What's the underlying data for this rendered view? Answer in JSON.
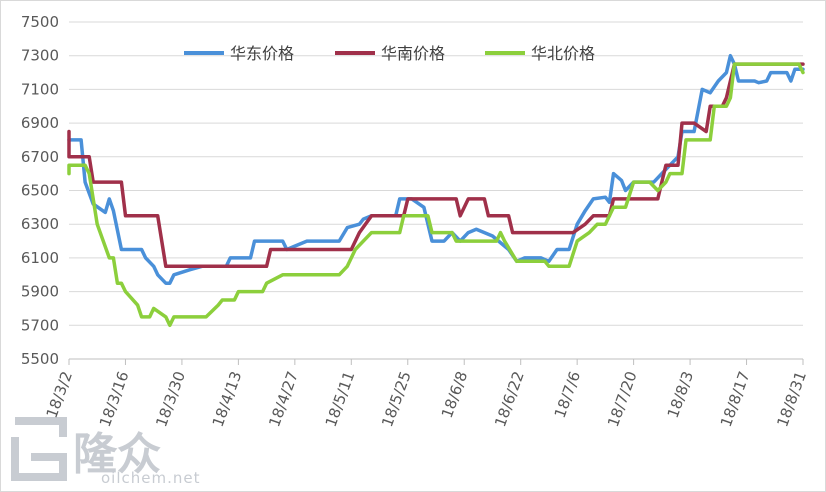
{
  "chart_data": {
    "type": "line",
    "title": "",
    "xlabel": "",
    "ylabel": "",
    "ylim": [
      5500,
      7500
    ],
    "yticks": [
      5500,
      5700,
      5900,
      6100,
      6300,
      6500,
      6700,
      6900,
      7100,
      7300,
      7500
    ],
    "x_range": [
      "18/3/2",
      "18/8/31"
    ],
    "xticks": [
      "18/3/2",
      "18/3/16",
      "18/3/30",
      "18/4/13",
      "18/4/27",
      "18/5/11",
      "18/5/25",
      "18/6/8",
      "18/6/22",
      "18/7/6",
      "18/7/20",
      "18/8/3",
      "18/8/17",
      "18/8/31"
    ],
    "grid": "horizontal",
    "legend_position": "top",
    "series": [
      {
        "name": "华东价格",
        "color": "#4a90d9",
        "points": [
          [
            "18/3/2",
            6800
          ],
          [
            "18/3/5",
            6800
          ],
          [
            "18/3/6",
            6550
          ],
          [
            "18/3/8",
            6420
          ],
          [
            "18/3/11",
            6370
          ],
          [
            "18/3/12",
            6450
          ],
          [
            "18/3/13",
            6380
          ],
          [
            "18/3/15",
            6150
          ],
          [
            "18/3/20",
            6150
          ],
          [
            "18/3/21",
            6100
          ],
          [
            "18/3/23",
            6050
          ],
          [
            "18/3/24",
            6000
          ],
          [
            "18/3/26",
            5950
          ],
          [
            "18/3/27",
            5950
          ],
          [
            "18/3/28",
            6000
          ],
          [
            "18/4/1",
            6030
          ],
          [
            "18/4/4",
            6050
          ],
          [
            "18/4/10",
            6050
          ],
          [
            "18/4/11",
            6100
          ],
          [
            "18/4/16",
            6100
          ],
          [
            "18/4/17",
            6200
          ],
          [
            "18/4/24",
            6200
          ],
          [
            "18/4/25",
            6150
          ],
          [
            "18/4/27",
            6170
          ],
          [
            "18/4/30",
            6200
          ],
          [
            "18/5/8",
            6200
          ],
          [
            "18/5/10",
            6280
          ],
          [
            "18/5/13",
            6300
          ],
          [
            "18/5/14",
            6330
          ],
          [
            "18/5/16",
            6350
          ],
          [
            "18/5/22",
            6350
          ],
          [
            "18/5/23",
            6450
          ],
          [
            "18/5/26",
            6450
          ],
          [
            "18/5/29",
            6400
          ],
          [
            "18/5/31",
            6200
          ],
          [
            "18/6/3",
            6200
          ],
          [
            "18/6/5",
            6250
          ],
          [
            "18/6/7",
            6200
          ],
          [
            "18/6/9",
            6250
          ],
          [
            "18/6/11",
            6270
          ],
          [
            "18/6/13",
            6250
          ],
          [
            "18/6/15",
            6230
          ],
          [
            "18/6/19",
            6150
          ],
          [
            "18/6/21",
            6080
          ],
          [
            "18/6/23",
            6100
          ],
          [
            "18/6/27",
            6100
          ],
          [
            "18/6/29",
            6080
          ],
          [
            "18/7/1",
            6150
          ],
          [
            "18/7/4",
            6150
          ],
          [
            "18/7/6",
            6300
          ],
          [
            "18/7/8",
            6380
          ],
          [
            "18/7/10",
            6450
          ],
          [
            "18/7/13",
            6460
          ],
          [
            "18/7/14",
            6430
          ],
          [
            "18/7/15",
            6600
          ],
          [
            "18/7/17",
            6560
          ],
          [
            "18/7/18",
            6500
          ],
          [
            "18/7/20",
            6550
          ],
          [
            "18/7/25",
            6550
          ],
          [
            "18/7/27",
            6600
          ],
          [
            "18/7/29",
            6650
          ],
          [
            "18/7/31",
            6700
          ],
          [
            "18/8/1",
            6850
          ],
          [
            "18/8/4",
            6850
          ],
          [
            "18/8/6",
            7100
          ],
          [
            "18/8/8",
            7080
          ],
          [
            "18/8/10",
            7150
          ],
          [
            "18/8/12",
            7200
          ],
          [
            "18/8/13",
            7300
          ],
          [
            "18/8/14",
            7250
          ],
          [
            "18/8/15",
            7150
          ],
          [
            "18/8/19",
            7150
          ],
          [
            "18/8/20",
            7140
          ],
          [
            "18/8/22",
            7150
          ],
          [
            "18/8/23",
            7200
          ],
          [
            "18/8/27",
            7200
          ],
          [
            "18/8/28",
            7150
          ],
          [
            "18/8/29",
            7220
          ],
          [
            "18/8/31",
            7220
          ]
        ]
      },
      {
        "name": "华南价格",
        "color": "#a0304a",
        "points": [
          [
            "18/3/2",
            6850
          ],
          [
            "18/3/2",
            6700
          ],
          [
            "18/3/7",
            6700
          ],
          [
            "18/3/8",
            6550
          ],
          [
            "18/3/15",
            6550
          ],
          [
            "18/3/16",
            6350
          ],
          [
            "18/3/24",
            6350
          ],
          [
            "18/3/26",
            6050
          ],
          [
            "18/4/20",
            6050
          ],
          [
            "18/4/21",
            6150
          ],
          [
            "18/5/11",
            6150
          ],
          [
            "18/5/13",
            6250
          ],
          [
            "18/5/16",
            6350
          ],
          [
            "18/5/24",
            6350
          ],
          [
            "18/5/25",
            6450
          ],
          [
            "18/6/6",
            6450
          ],
          [
            "18/6/7",
            6350
          ],
          [
            "18/6/9",
            6450
          ],
          [
            "18/6/13",
            6450
          ],
          [
            "18/6/14",
            6350
          ],
          [
            "18/6/19",
            6350
          ],
          [
            "18/6/20",
            6250
          ],
          [
            "18/7/5",
            6250
          ],
          [
            "18/7/8",
            6300
          ],
          [
            "18/7/10",
            6350
          ],
          [
            "18/7/14",
            6350
          ],
          [
            "18/7/15",
            6450
          ],
          [
            "18/7/26",
            6450
          ],
          [
            "18/7/27",
            6550
          ],
          [
            "18/7/28",
            6650
          ],
          [
            "18/7/31",
            6650
          ],
          [
            "18/8/1",
            6900
          ],
          [
            "18/8/4",
            6900
          ],
          [
            "18/8/7",
            6850
          ],
          [
            "18/8/8",
            7000
          ],
          [
            "18/8/11",
            7000
          ],
          [
            "18/8/12",
            7050
          ],
          [
            "18/8/14",
            7250
          ],
          [
            "18/8/31",
            7250
          ]
        ]
      },
      {
        "name": "华北价格",
        "color": "#8ccf3c",
        "points": [
          [
            "18/3/2",
            6600
          ],
          [
            "18/3/2",
            6650
          ],
          [
            "18/3/6",
            6650
          ],
          [
            "18/3/7",
            6600
          ],
          [
            "18/3/9",
            6300
          ],
          [
            "18/3/12",
            6100
          ],
          [
            "18/3/13",
            6100
          ],
          [
            "18/3/14",
            5950
          ],
          [
            "18/3/15",
            5950
          ],
          [
            "18/3/16",
            5900
          ],
          [
            "18/3/19",
            5820
          ],
          [
            "18/3/20",
            5750
          ],
          [
            "18/3/22",
            5750
          ],
          [
            "18/3/23",
            5800
          ],
          [
            "18/3/26",
            5750
          ],
          [
            "18/3/27",
            5700
          ],
          [
            "18/3/28",
            5750
          ],
          [
            "18/4/5",
            5750
          ],
          [
            "18/4/8",
            5820
          ],
          [
            "18/4/9",
            5850
          ],
          [
            "18/4/12",
            5850
          ],
          [
            "18/4/13",
            5900
          ],
          [
            "18/4/19",
            5900
          ],
          [
            "18/4/20",
            5950
          ],
          [
            "18/4/24",
            6000
          ],
          [
            "18/5/8",
            6000
          ],
          [
            "18/5/10",
            6050
          ],
          [
            "18/5/12",
            6150
          ],
          [
            "18/5/16",
            6250
          ],
          [
            "18/5/23",
            6250
          ],
          [
            "18/5/24",
            6350
          ],
          [
            "18/5/30",
            6350
          ],
          [
            "18/5/31",
            6250
          ],
          [
            "18/6/5",
            6250
          ],
          [
            "18/6/6",
            6200
          ],
          [
            "18/6/16",
            6200
          ],
          [
            "18/6/17",
            6250
          ],
          [
            "18/6/18",
            6200
          ],
          [
            "18/6/21",
            6080
          ],
          [
            "18/6/23",
            6080
          ],
          [
            "18/6/28",
            6080
          ],
          [
            "18/6/29",
            6050
          ],
          [
            "18/7/4",
            6050
          ],
          [
            "18/7/6",
            6200
          ],
          [
            "18/7/9",
            6250
          ],
          [
            "18/7/11",
            6300
          ],
          [
            "18/7/13",
            6300
          ],
          [
            "18/7/15",
            6400
          ],
          [
            "18/7/18",
            6400
          ],
          [
            "18/7/20",
            6550
          ],
          [
            "18/7/24",
            6550
          ],
          [
            "18/7/26",
            6500
          ],
          [
            "18/7/28",
            6550
          ],
          [
            "18/7/29",
            6600
          ],
          [
            "18/8/1",
            6600
          ],
          [
            "18/8/2",
            6800
          ],
          [
            "18/8/8",
            6800
          ],
          [
            "18/8/9",
            7000
          ],
          [
            "18/8/12",
            7000
          ],
          [
            "18/8/13",
            7050
          ],
          [
            "18/8/14",
            7250
          ],
          [
            "18/8/30",
            7250
          ],
          [
            "18/8/31",
            7200
          ]
        ]
      }
    ]
  },
  "watermark": {
    "brand": "隆众",
    "site": "oilchem.net"
  }
}
